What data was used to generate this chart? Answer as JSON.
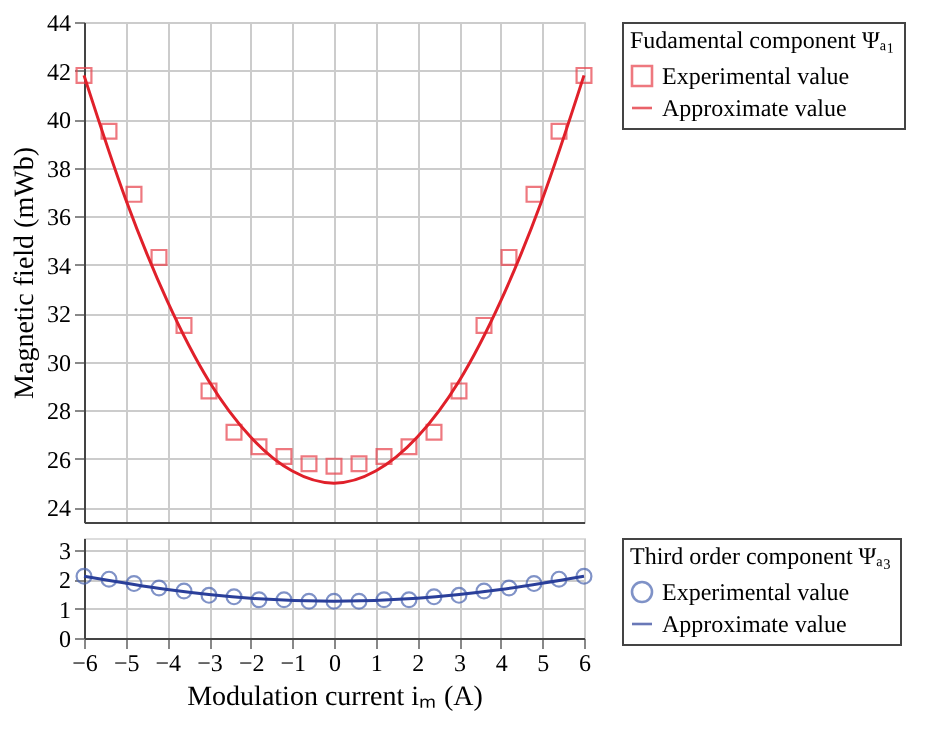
{
  "chart_data": [
    {
      "type": "scatter",
      "ylabel": "Magnetic field (mWb)",
      "legend_title": "Fudamental component Ψₐ₁",
      "legend": "right",
      "grid": true,
      "tick_labels": "y",
      "xlim": [
        -6,
        6
      ],
      "xticks": [
        -6,
        -5,
        -4,
        -3,
        -2,
        -1,
        0,
        1,
        2,
        3,
        4,
        5,
        6
      ],
      "ylim": [
        23.4,
        44
      ],
      "yticks": [
        24,
        26,
        28,
        30,
        32,
        34,
        36,
        38,
        40,
        42,
        44
      ],
      "series": [
        {
          "name": "Experimental value",
          "type": "scatter",
          "marker": "square",
          "color": "#e8404a",
          "x": [
            -6,
            -5.4,
            -4.8,
            -4.2,
            -3.6,
            -3,
            -2.4,
            -1.8,
            -1.2,
            -0.6,
            0,
            0.6,
            1.2,
            1.8,
            2.4,
            3,
            3.6,
            4.2,
            4.8,
            5.4,
            6
          ],
          "values": [
            41.8,
            39.5,
            36.9,
            34.3,
            31.5,
            28.8,
            27.1,
            26.5,
            26.1,
            25.8,
            25.7,
            25.8,
            26.1,
            26.5,
            27.1,
            28.8,
            31.5,
            34.3,
            36.9,
            39.5,
            41.8
          ]
        },
        {
          "name": "Approximate value",
          "type": "line",
          "color": "#e0202a",
          "x": [
            -6,
            -5,
            -4,
            -3,
            -2,
            -1,
            0,
            1,
            2,
            3,
            4,
            5,
            6
          ],
          "values": [
            41.8,
            36.7,
            32.5,
            29.2,
            26.9,
            25.5,
            25.0,
            25.5,
            26.9,
            29.2,
            32.5,
            36.7,
            41.8
          ]
        }
      ]
    },
    {
      "type": "scatter",
      "xlabel": "Modulation current iₘ (A)",
      "legend_title": "Third order component Ψₐ₃",
      "legend": "right",
      "grid": true,
      "xlim": [
        -6,
        6
      ],
      "xticks": [
        -6,
        -5,
        -4,
        -3,
        -2,
        -1,
        0,
        1,
        2,
        3,
        4,
        5,
        6
      ],
      "ylim": [
        0,
        3.4
      ],
      "yticks": [
        0,
        1,
        2,
        3
      ],
      "series": [
        {
          "name": "Experimental value",
          "type": "scatter",
          "marker": "circle",
          "color": "#4a64b0",
          "x": [
            -6,
            -5.4,
            -4.8,
            -4.2,
            -3.6,
            -3,
            -2.4,
            -1.8,
            -1.2,
            -0.6,
            0,
            0.6,
            1.2,
            1.8,
            2.4,
            3,
            3.6,
            4.2,
            4.8,
            5.4,
            6
          ],
          "values": [
            2.1,
            2.0,
            1.85,
            1.7,
            1.6,
            1.45,
            1.4,
            1.3,
            1.3,
            1.25,
            1.25,
            1.25,
            1.3,
            1.3,
            1.4,
            1.45,
            1.6,
            1.7,
            1.85,
            2.0,
            2.1
          ]
        },
        {
          "name": "Approximate value",
          "type": "line",
          "color": "#2a3f9a",
          "x": [
            -6,
            -4,
            -2,
            0,
            2,
            4,
            6
          ],
          "values": [
            2.1,
            1.65,
            1.35,
            1.25,
            1.35,
            1.65,
            2.1
          ]
        }
      ]
    }
  ]
}
